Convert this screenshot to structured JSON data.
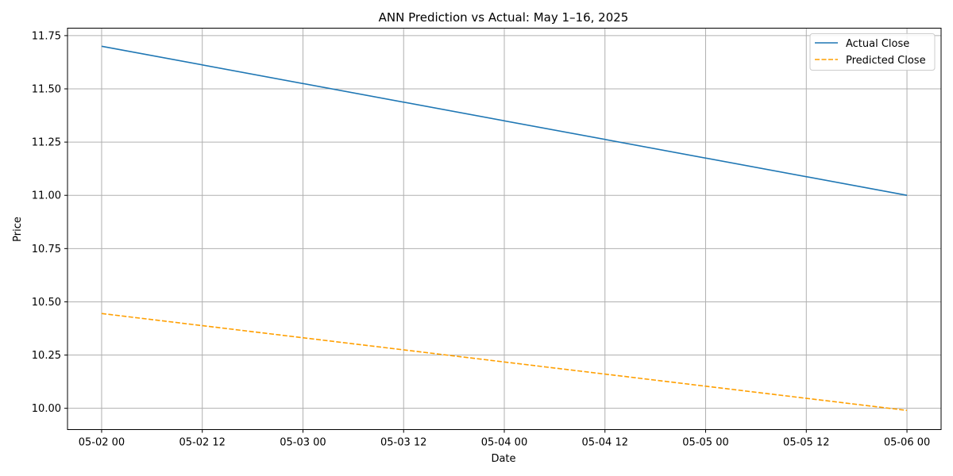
{
  "chart_data": {
    "type": "line",
    "title": "ANN Prediction vs Actual: May 1–16, 2025",
    "xlabel": "Date",
    "ylabel": "Price",
    "x": [
      "2025-05-02 00:00",
      "2025-05-06 00:00"
    ],
    "x_tick_values": [
      "2025-05-02 00:00",
      "2025-05-02 12:00",
      "2025-05-03 00:00",
      "2025-05-03 12:00",
      "2025-05-04 00:00",
      "2025-05-04 12:00",
      "2025-05-05 00:00",
      "2025-05-05 12:00",
      "2025-05-06 00:00"
    ],
    "x_tick_labels": [
      "05-02 00",
      "05-02 12",
      "05-03 00",
      "05-03 12",
      "05-04 00",
      "05-04 12",
      "05-05 00",
      "05-05 12",
      "05-06 00"
    ],
    "xlim": [
      "2025-05-01 19:56",
      "2025-05-06 04:04"
    ],
    "y_ticks": [
      10.0,
      10.25,
      10.5,
      10.75,
      11.0,
      11.25,
      11.5,
      11.75
    ],
    "y_tick_labels": [
      "10.00",
      "10.25",
      "10.50",
      "10.75",
      "11.00",
      "11.25",
      "11.50",
      "11.75"
    ],
    "ylim": [
      9.9,
      11.785
    ],
    "grid": true,
    "legend_position": "top-right",
    "series": [
      {
        "name": "Actual Close",
        "values": [
          11.7,
          11.0
        ],
        "color": "#1f77b4",
        "style": "solid"
      },
      {
        "name": "Predicted Close",
        "values": [
          10.445,
          9.99
        ],
        "color": "#ff9f00",
        "style": "dashed"
      }
    ]
  }
}
